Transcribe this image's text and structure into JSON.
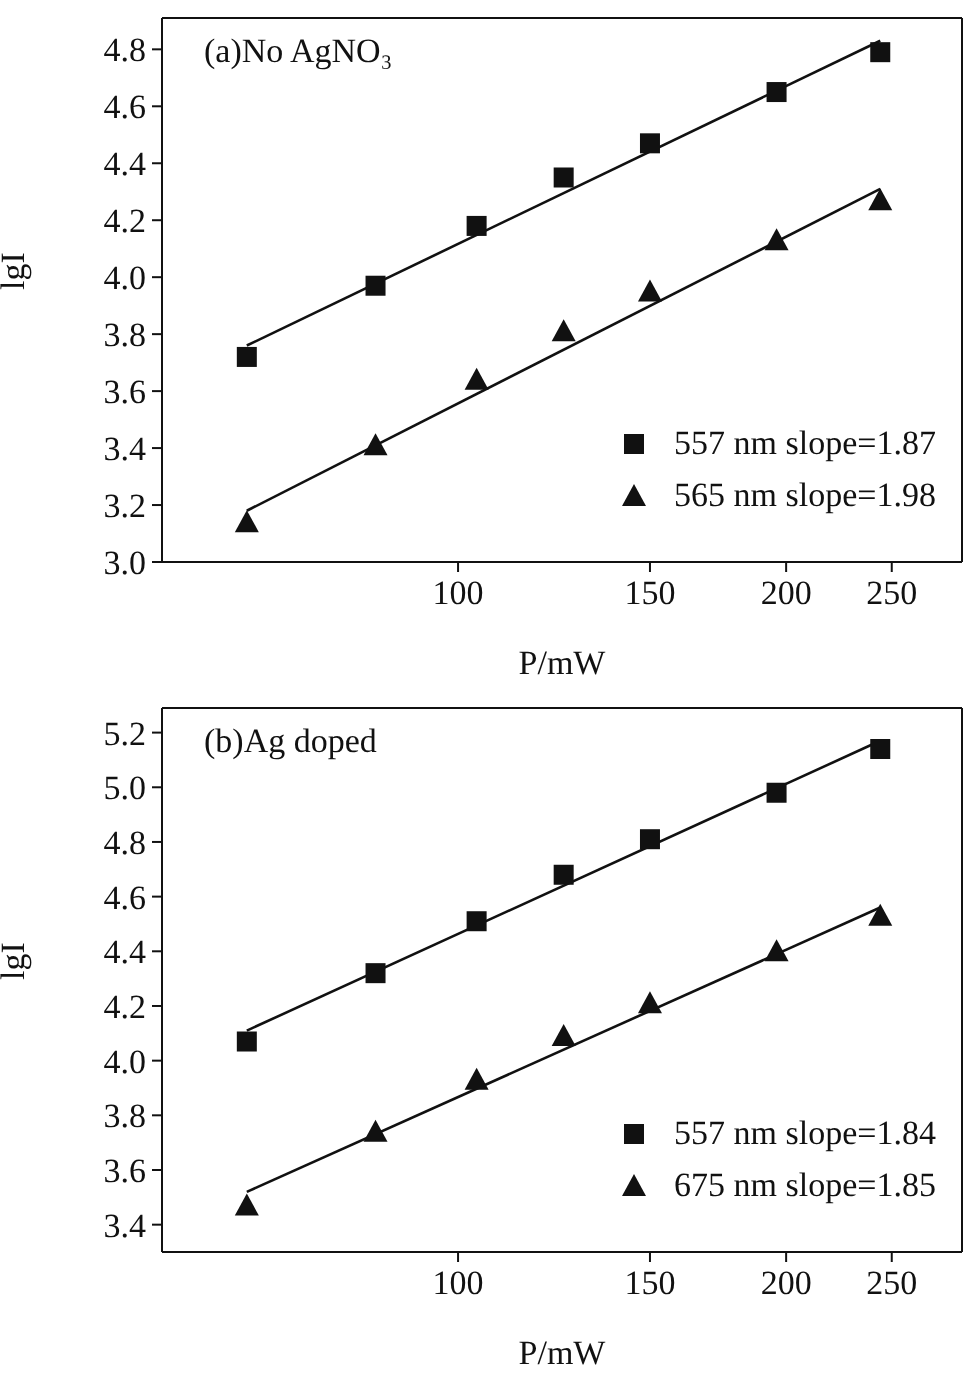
{
  "chart_data": [
    {
      "type": "scatter",
      "title": "(a)No AgNO₃",
      "xlabel": "P/mW",
      "ylabel": "lgI",
      "log": "x",
      "xlim": [
        53.5,
        290
      ],
      "xticks": [
        100,
        150,
        200,
        250
      ],
      "ylim": [
        3.0,
        4.91
      ],
      "yticks": [
        {
          "value": 3,
          "label": "3.0"
        },
        3.2,
        3.4,
        3.6,
        3.8,
        {
          "value": 4,
          "label": "4.0"
        },
        4.2,
        4.4,
        4.6,
        4.8
      ],
      "legend": "bottom right",
      "series": [
        {
          "name": "557 nm slope=1.87",
          "color": "#111111",
          "marker": "square",
          "x": [
            64,
            84,
            104,
            125,
            150,
            196,
            244
          ],
          "values": [
            3.72,
            3.97,
            4.18,
            4.35,
            4.47,
            4.65,
            4.79
          ]
        },
        {
          "name": "565 nm slope=1.98",
          "color": "#111111",
          "marker": "triangle",
          "x": [
            64,
            84,
            104,
            125,
            150,
            196,
            244
          ],
          "values": [
            3.14,
            3.41,
            3.64,
            3.81,
            3.95,
            4.13,
            4.27
          ]
        },
        {
          "type": "line",
          "color": "#111111",
          "marker": "none",
          "x": [
            64,
            244
          ],
          "values": [
            3.76,
            4.83
          ]
        },
        {
          "type": "line",
          "color": "#111111",
          "marker": "none",
          "x": [
            64,
            244
          ],
          "values": [
            3.18,
            4.31
          ]
        }
      ]
    },
    {
      "type": "scatter",
      "title": "(b)Ag doped",
      "xlabel": "P/mW",
      "ylabel": "lgI",
      "log": "x",
      "xlim": [
        53.5,
        290
      ],
      "xticks": [
        100,
        150,
        200,
        250
      ],
      "ylim": [
        3.3,
        5.29
      ],
      "yticks": [
        3.4,
        3.6,
        3.8,
        {
          "value": 4,
          "label": "4.0"
        },
        4.2,
        4.4,
        4.6,
        4.8,
        {
          "value": 5,
          "label": "5.0"
        },
        5.2
      ],
      "legend": "bottom right",
      "series": [
        {
          "name": "557 nm slope=1.84",
          "color": "#111111",
          "marker": "square",
          "x": [
            64,
            84,
            104,
            125,
            150,
            196,
            244
          ],
          "values": [
            4.07,
            4.32,
            4.51,
            4.68,
            4.81,
            4.98,
            5.14
          ]
        },
        {
          "name": "675 nm slope=1.85",
          "color": "#111111",
          "marker": "triangle",
          "x": [
            64,
            84,
            104,
            125,
            150,
            196,
            244
          ],
          "values": [
            3.47,
            3.74,
            3.93,
            4.09,
            4.21,
            4.4,
            4.53
          ]
        },
        {
          "type": "line",
          "color": "#111111",
          "marker": "none",
          "x": [
            64,
            244
          ],
          "values": [
            4.11,
            5.17
          ]
        },
        {
          "type": "line",
          "color": "#111111",
          "marker": "none",
          "x": [
            64,
            244
          ],
          "values": [
            3.52,
            4.56
          ]
        }
      ]
    }
  ]
}
